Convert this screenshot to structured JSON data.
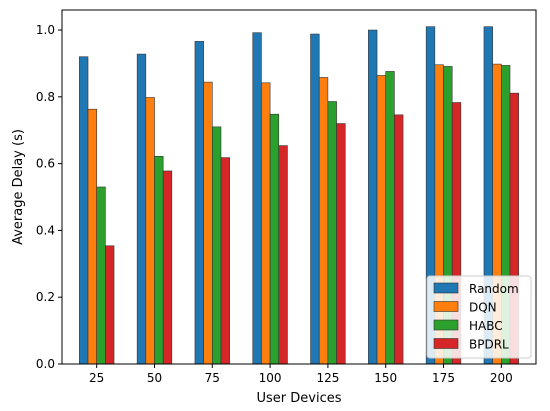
{
  "chart_data": {
    "type": "bar",
    "xlabel": "User Devices",
    "ylabel": "Average Delay (s)",
    "categories": [
      "25",
      "50",
      "75",
      "100",
      "125",
      "150",
      "175",
      "200"
    ],
    "ylim": [
      0,
      1.06
    ],
    "yticks": [
      0.0,
      0.2,
      0.4,
      0.6,
      0.8,
      1.0
    ],
    "ytick_labels": [
      "0.0",
      "0.2",
      "0.4",
      "0.6",
      "0.8",
      "1.0"
    ],
    "grid": false,
    "legend_position": "bottom-right",
    "series": [
      {
        "name": "Random",
        "color": "#1f77b4",
        "values": [
          0.92,
          0.928,
          0.966,
          0.992,
          0.988,
          1.0,
          1.01,
          1.01
        ]
      },
      {
        "name": "DQN",
        "color": "#ff7f0e",
        "values": [
          0.763,
          0.798,
          0.844,
          0.842,
          0.858,
          0.864,
          0.896,
          0.898
        ]
      },
      {
        "name": "HABC",
        "color": "#2ca02c",
        "values": [
          0.53,
          0.622,
          0.71,
          0.748,
          0.786,
          0.876,
          0.891,
          0.894
        ]
      },
      {
        "name": "BPDRL",
        "color": "#d62728",
        "values": [
          0.354,
          0.578,
          0.618,
          0.654,
          0.72,
          0.746,
          0.783,
          0.811
        ]
      }
    ]
  }
}
